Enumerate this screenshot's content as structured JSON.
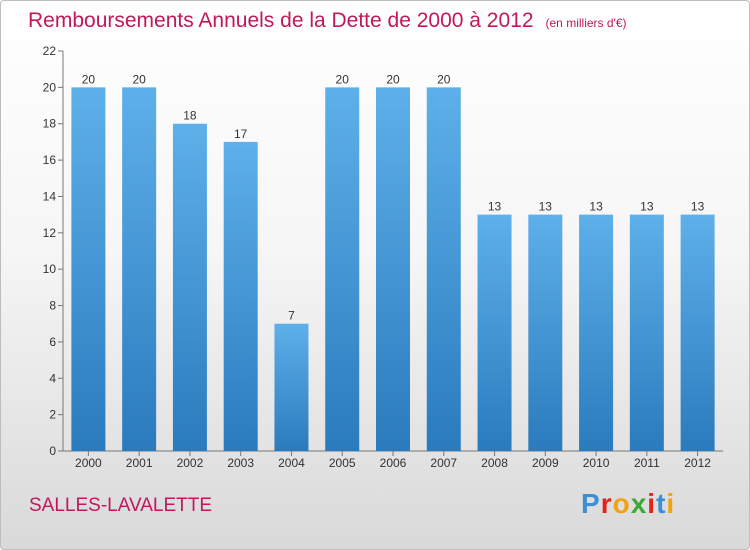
{
  "chart_data": {
    "type": "bar",
    "title": "Remboursements Annuels de la Dette de 2000 à 2012",
    "subtitle": "(en milliers d'€)",
    "categories": [
      "2000",
      "2001",
      "2002",
      "2003",
      "2004",
      "2005",
      "2006",
      "2007",
      "2008",
      "2009",
      "2010",
      "2011",
      "2012"
    ],
    "values": [
      20,
      20,
      18,
      17,
      7,
      20,
      20,
      20,
      13,
      13,
      13,
      13,
      13
    ],
    "ylim": [
      0,
      22
    ],
    "yticks": [
      0,
      2,
      4,
      6,
      8,
      10,
      12,
      14,
      16,
      18,
      20,
      22
    ],
    "xlabel": "",
    "ylabel": "",
    "grid": false
  },
  "commune": "SALLES-LAVALETTE",
  "logo": {
    "letters": [
      "P",
      "r",
      "o",
      "x",
      "i",
      "t",
      "i"
    ],
    "colors": [
      "#3c8fd6",
      "#e2231a",
      "#f2a20c",
      "#3aaa35",
      "#e2231a",
      "#3c8fd6",
      "#f2a20c"
    ]
  },
  "colors": {
    "bar_light": "#5eb0ea",
    "bar_dark": "#2a7bbd",
    "accent": "#c2185b"
  }
}
